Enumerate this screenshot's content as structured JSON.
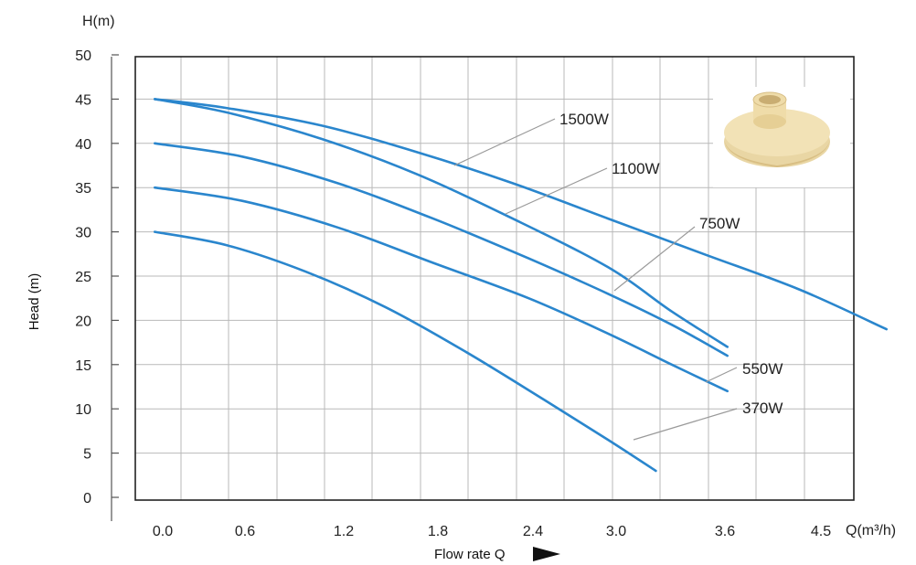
{
  "chart_data": {
    "type": "line",
    "title": "",
    "xlabel": "Flow rate Q",
    "ylabel": "Head (m)",
    "x_unit_label": "Q(m³/h)",
    "y_unit_label": "H(m)",
    "xlim": [
      0,
      4.8
    ],
    "ylim": [
      0,
      50
    ],
    "x_ticks": [
      "0.0",
      "0.6",
      "1.2",
      "1.8",
      "2.4",
      "3.0",
      "3.6",
      "4.5"
    ],
    "y_ticks": [
      "0",
      "5",
      "10",
      "15",
      "20",
      "25",
      "30",
      "35",
      "40",
      "45",
      "50"
    ],
    "grid": true,
    "line_color": "#2a86cd",
    "series": [
      {
        "name": "1500W",
        "points": [
          [
            -0.05,
            45
          ],
          [
            0.4,
            44
          ],
          [
            1.0,
            42
          ],
          [
            1.6,
            39
          ],
          [
            2.2,
            35.5
          ],
          [
            2.8,
            31.5
          ],
          [
            3.4,
            27.5
          ],
          [
            4.0,
            23.5
          ],
          [
            4.55,
            19
          ]
        ]
      },
      {
        "name": "1100W",
        "points": [
          [
            -0.05,
            45
          ],
          [
            0.4,
            43.5
          ],
          [
            1.0,
            40.5
          ],
          [
            1.6,
            36.5
          ],
          [
            2.2,
            31.5
          ],
          [
            2.8,
            26
          ],
          [
            3.2,
            21
          ],
          [
            3.55,
            17
          ]
        ]
      },
      {
        "name": "750W",
        "points": [
          [
            -0.05,
            40
          ],
          [
            0.5,
            38.5
          ],
          [
            1.1,
            35.5
          ],
          [
            1.7,
            31.5
          ],
          [
            2.3,
            27
          ],
          [
            2.8,
            23
          ],
          [
            3.2,
            19.5
          ],
          [
            3.55,
            16
          ]
        ]
      },
      {
        "name": "550W",
        "points": [
          [
            -0.05,
            35
          ],
          [
            0.5,
            33.5
          ],
          [
            1.1,
            30.5
          ],
          [
            1.7,
            26.5
          ],
          [
            2.3,
            22.5
          ],
          [
            2.8,
            18.5
          ],
          [
            3.2,
            15
          ],
          [
            3.55,
            12
          ]
        ]
      },
      {
        "name": "370W",
        "points": [
          [
            -0.05,
            30
          ],
          [
            0.4,
            28.5
          ],
          [
            0.9,
            25.5
          ],
          [
            1.4,
            21.5
          ],
          [
            1.9,
            16.5
          ],
          [
            2.4,
            11
          ],
          [
            2.8,
            6.5
          ],
          [
            3.1,
            3
          ]
        ]
      }
    ]
  },
  "legend_labels": {
    "s1500": "1500W",
    "s1100": "1100W",
    "s750": "750W",
    "s550": "550W",
    "s370": "370W"
  },
  "impeller_image": "impeller-photo"
}
